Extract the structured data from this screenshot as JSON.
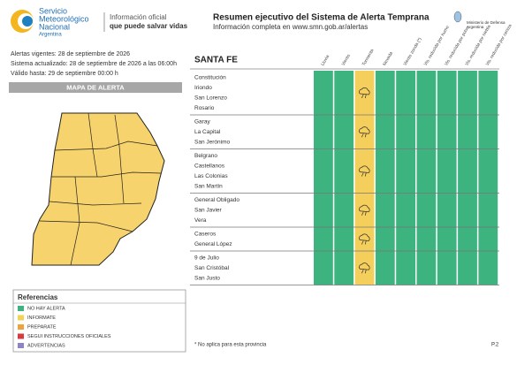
{
  "header": {
    "org": [
      "Servicio",
      "Meteorológico",
      "Nacional"
    ],
    "country": "Argentina",
    "tagline": [
      "Información oficial",
      "que puede salvar vidas"
    ],
    "title": "Resumen ejecutivo del Sistema de Alerta Temprana",
    "subtitle": "Información completa en www.smn.gob.ar/alertas",
    "ministry": [
      "Ministerio de Defensa",
      "Argentina"
    ]
  },
  "info": [
    "Alertas vigentes: 28 de septiembre de 2026",
    "Sistema actualizado: 28 de septiembre de 2026 a las 06:00h",
    "Válido hasta: 29 de septiembre 00:00 h"
  ],
  "map_title": "MAPA DE ALERTA",
  "legend": {
    "title": "Referencias",
    "items": [
      {
        "label": "NO HAY ALERTA",
        "color": "#3db37f"
      },
      {
        "label": "INFORMATE",
        "color": "#f2d357"
      },
      {
        "label": "PREPARATE",
        "color": "#f0a33a"
      },
      {
        "label": "SEGUI INSTRUCCIONES OFICIALES",
        "color": "#d63b40"
      },
      {
        "label": "ADVERTENCIAS",
        "color": "#8e84c4"
      }
    ]
  },
  "province": "SANTA FE",
  "columns": [
    {
      "label": "Lluvia",
      "color": "#3db37f"
    },
    {
      "label": "Viento",
      "color": "#3db37f"
    },
    {
      "label": "Tormenta",
      "color": "#f5cf5b"
    },
    {
      "label": "Nevada",
      "color": "#3db37f"
    },
    {
      "label": "Viento zonda (*)",
      "color": "#3db37f"
    },
    {
      "label": "Vis. reducida por humo",
      "color": "#3db37f"
    },
    {
      "label": "Vis. reducida por polvo",
      "color": "#3db37f"
    },
    {
      "label": "Vis. reducida por niebla",
      "color": "#3db37f"
    },
    {
      "label": "Vis. reducida por ceniza",
      "color": "#3db37f"
    }
  ],
  "groups": [
    {
      "zones": [
        "Constitución",
        "Iriondo",
        "San Lorenzo",
        "Rosario"
      ]
    },
    {
      "zones": [
        "Garay",
        "La Capital",
        "San Jerónimo"
      ]
    },
    {
      "zones": [
        "Belgrano",
        "Castellanos",
        "Las Colonias",
        "San Martín"
      ]
    },
    {
      "zones": [
        "General Obligado",
        "San Javier",
        "Vera"
      ]
    },
    {
      "zones": [
        "Caseros",
        "General López"
      ]
    },
    {
      "zones": [
        "9 de Julio",
        "San Cristóbal",
        "San Justo"
      ]
    }
  ],
  "footnote": "* No aplica para esta provincia",
  "page": "P.2"
}
